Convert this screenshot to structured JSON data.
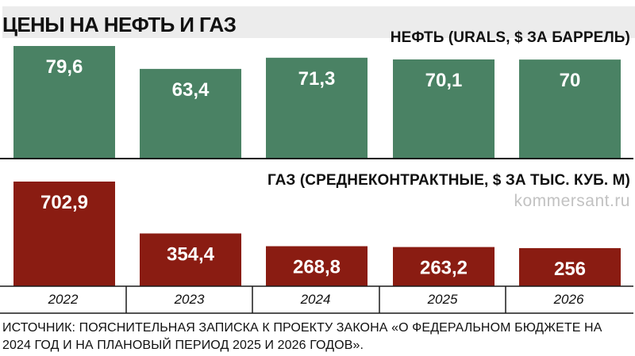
{
  "title": "ЦЕНЫ НА НЕФТЬ И ГАЗ",
  "watermark": "kommersant.ru",
  "source": "ИСТОЧНИК: ПОЯСНИТЕЛЬНАЯ ЗАПИСКА К ПРОЕКТУ ЗАКОНА «О ФЕДЕРАЛЬНОМ БЮДЖЕТЕ НА 2024 ГОД И НА ПЛАНОВЫЙ ПЕРИОД 2025 И 2026 ГОДОВ».",
  "colors": {
    "oil": "#4a8264",
    "gas": "#8a1c12",
    "divider": "#1a1a1a"
  },
  "chart_data": [
    {
      "type": "bar",
      "title": "НЕФТЬ (URALS, $ ЗА БАРРЕЛЬ)",
      "categories": [
        "2022",
        "2023",
        "2024",
        "2025",
        "2026"
      ],
      "values": [
        79.6,
        63.4,
        71.3,
        70.1,
        70
      ],
      "value_labels": [
        "79,6",
        "63,4",
        "71,3",
        "70,1",
        "70"
      ],
      "ylim": [
        0,
        80
      ]
    },
    {
      "type": "bar",
      "title": "ГАЗ (СРЕДНЕКОНТРАКТНЫЕ, $ ЗА ТЫС. КУБ. М)",
      "categories": [
        "2022",
        "2023",
        "2024",
        "2025",
        "2026"
      ],
      "values": [
        702.9,
        354.4,
        268.8,
        263.2,
        256
      ],
      "value_labels": [
        "702,9",
        "354,4",
        "268,8",
        "263,2",
        "256"
      ],
      "ylim": [
        0,
        720
      ]
    }
  ]
}
